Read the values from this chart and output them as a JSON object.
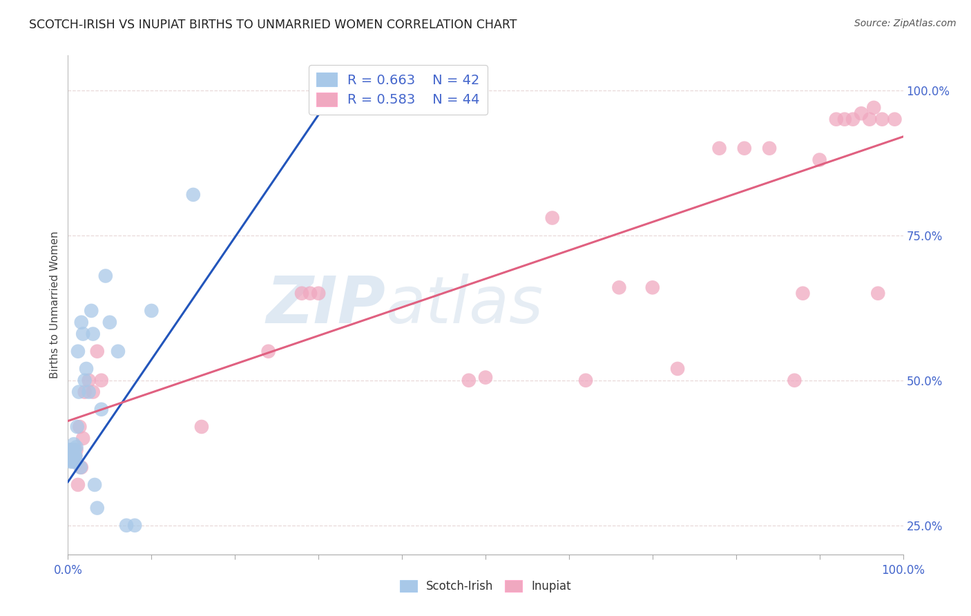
{
  "title": "SCOTCH-IRISH VS INUPIAT BIRTHS TO UNMARRIED WOMEN CORRELATION CHART",
  "source": "Source: ZipAtlas.com",
  "ylabel": "Births to Unmarried Women",
  "watermark_zip": "ZIP",
  "watermark_atlas": "atlas",
  "legend_blue_r": "R = 0.663",
  "legend_blue_n": "N = 42",
  "legend_pink_r": "R = 0.583",
  "legend_pink_n": "N = 44",
  "blue_color": "#a8c8e8",
  "pink_color": "#f0a8c0",
  "blue_line_color": "#2255bb",
  "pink_line_color": "#e06080",
  "background_color": "#ffffff",
  "grid_color": "#e8d8d8",
  "title_color": "#222222",
  "tick_label_color": "#4466cc",
  "scotch_irish_x": [
    0.001,
    0.001,
    0.002,
    0.002,
    0.003,
    0.003,
    0.004,
    0.004,
    0.005,
    0.005,
    0.006,
    0.006,
    0.007,
    0.007,
    0.007,
    0.008,
    0.008,
    0.009,
    0.01,
    0.01,
    0.011,
    0.012,
    0.013,
    0.015,
    0.016,
    0.018,
    0.02,
    0.022,
    0.025,
    0.028,
    0.03,
    0.032,
    0.035,
    0.04,
    0.045,
    0.05,
    0.06,
    0.07,
    0.08,
    0.1,
    0.15,
    0.32
  ],
  "scotch_irish_y": [
    0.365,
    0.375,
    0.37,
    0.38,
    0.36,
    0.38,
    0.37,
    0.375,
    0.36,
    0.38,
    0.37,
    0.38,
    0.36,
    0.375,
    0.39,
    0.37,
    0.38,
    0.37,
    0.36,
    0.385,
    0.42,
    0.55,
    0.48,
    0.35,
    0.6,
    0.58,
    0.5,
    0.52,
    0.48,
    0.62,
    0.58,
    0.32,
    0.28,
    0.45,
    0.68,
    0.6,
    0.55,
    0.25,
    0.25,
    0.62,
    0.82,
    1.0
  ],
  "inupiat_x": [
    0.001,
    0.003,
    0.004,
    0.006,
    0.007,
    0.008,
    0.009,
    0.01,
    0.012,
    0.014,
    0.016,
    0.018,
    0.02,
    0.025,
    0.03,
    0.035,
    0.04,
    0.16,
    0.24,
    0.28,
    0.29,
    0.3,
    0.48,
    0.5,
    0.58,
    0.62,
    0.66,
    0.7,
    0.73,
    0.78,
    0.81,
    0.84,
    0.87,
    0.88,
    0.9,
    0.92,
    0.93,
    0.94,
    0.95,
    0.96,
    0.965,
    0.97,
    0.975,
    0.99
  ],
  "inupiat_y": [
    0.365,
    0.375,
    0.38,
    0.37,
    0.36,
    0.38,
    0.37,
    0.38,
    0.32,
    0.42,
    0.35,
    0.4,
    0.48,
    0.5,
    0.48,
    0.55,
    0.5,
    0.42,
    0.55,
    0.65,
    0.65,
    0.65,
    0.5,
    0.505,
    0.78,
    0.5,
    0.66,
    0.66,
    0.52,
    0.9,
    0.9,
    0.9,
    0.5,
    0.65,
    0.88,
    0.95,
    0.95,
    0.95,
    0.96,
    0.95,
    0.97,
    0.65,
    0.95,
    0.95
  ],
  "xlim": [
    0.0,
    1.0
  ],
  "ylim": [
    0.2,
    1.06
  ],
  "yticks": [
    0.25,
    0.5,
    0.75,
    1.0
  ],
  "ytick_labels": [
    "25.0%",
    "50.0%",
    "75.0%",
    "100.0%"
  ],
  "xtick_labels": [
    "0.0%",
    "100.0%"
  ]
}
